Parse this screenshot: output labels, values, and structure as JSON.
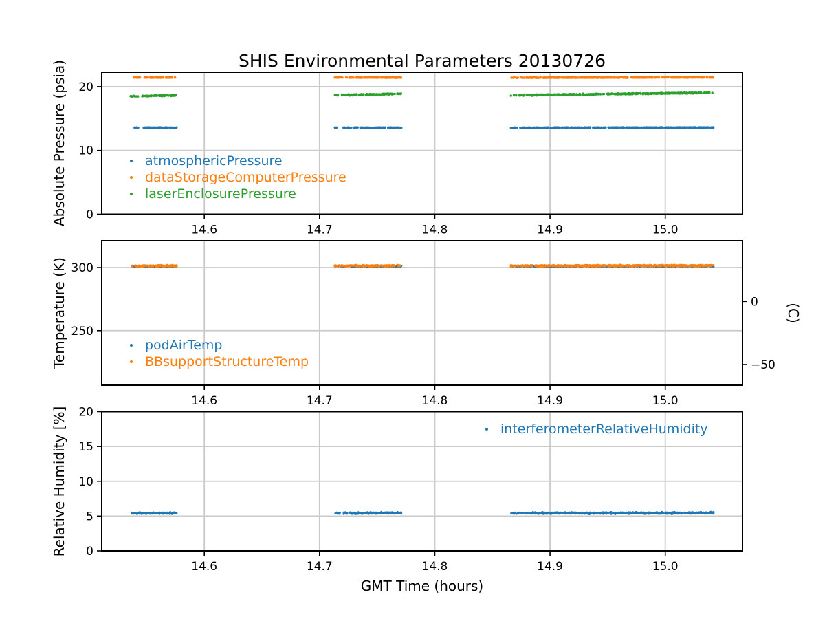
{
  "title": "SHIS Environmental Parameters 20130726",
  "xlabel": "GMT Time (hours)",
  "grid_color": "#cacaca",
  "frame_color": "#000000",
  "chart_data": [
    {
      "id": "pressure",
      "type": "scatter",
      "ylabel": "Absolute Pressure (psia)",
      "xlim": [
        14.511,
        15.067
      ],
      "ylim": [
        0,
        22.25
      ],
      "xticks": [
        14.6,
        14.7,
        14.8,
        14.9,
        15.0
      ],
      "xtick_labels": [
        "14.6",
        "14.7",
        "14.8",
        "14.9",
        "15.0"
      ],
      "yticks": [
        0,
        10,
        20
      ],
      "ytick_labels": [
        "0",
        "10",
        "20"
      ],
      "grid": true,
      "legend_position": "lower left",
      "series": [
        {
          "name": "atmosphericPressure",
          "color": "#1f77b4",
          "noise": 0.04,
          "density": 1.4,
          "r": 1.7,
          "segments": [
            {
              "x": [
                14.536,
                14.576
              ],
              "y": [
                13.58,
                13.58
              ]
            },
            {
              "x": [
                14.713,
                14.771
              ],
              "y": [
                13.58,
                13.58
              ]
            },
            {
              "x": [
                14.866,
                15.042
              ],
              "y": [
                13.57,
                13.6
              ]
            }
          ]
        },
        {
          "name": "dataStorageComputerPressure",
          "color": "#ff7f0e",
          "noise": 0.04,
          "density": 1.4,
          "r": 1.7,
          "segments": [
            {
              "x": [
                14.536,
                14.576
              ],
              "y": [
                21.42,
                21.42
              ]
            },
            {
              "x": [
                14.713,
                14.771
              ],
              "y": [
                21.42,
                21.42
              ]
            },
            {
              "x": [
                14.866,
                15.042
              ],
              "y": [
                21.4,
                21.45
              ]
            }
          ]
        },
        {
          "name": "laserEnclosurePressure",
          "color": "#2ca02c",
          "noise": 0.08,
          "density": 1.4,
          "r": 1.7,
          "segments": [
            {
              "x": [
                14.536,
                14.576
              ],
              "y": [
                18.47,
                18.64
              ]
            },
            {
              "x": [
                14.713,
                14.771
              ],
              "y": [
                18.66,
                18.88
              ]
            },
            {
              "x": [
                14.866,
                15.042
              ],
              "y": [
                18.64,
                19.05
              ]
            }
          ]
        }
      ]
    },
    {
      "id": "temperature",
      "type": "scatter",
      "ylabel": "Temperature (K)",
      "ylabel_right": "(C)",
      "xlim": [
        14.511,
        15.067
      ],
      "ylim": [
        206.8,
        321.3
      ],
      "xticks": [
        14.6,
        14.7,
        14.8,
        14.9,
        15.0
      ],
      "xtick_labels": [
        "14.6",
        "14.7",
        "14.8",
        "14.9",
        "15.0"
      ],
      "yticks": [
        250,
        300
      ],
      "ytick_labels": [
        "250",
        "300"
      ],
      "right_axis": {
        "offset_K": 273.15,
        "ticks": [
          0,
          -50
        ],
        "tick_labels": [
          "0",
          "−50"
        ]
      },
      "grid": true,
      "legend_position": "lower left",
      "series": [
        {
          "name": "podAirTemp",
          "color": "#1f77b4",
          "noise": 0.28,
          "density": 1.5,
          "r": 1.6,
          "segments": [
            {
              "x": [
                14.536,
                14.576
              ],
              "y": [
                300.9,
                301.0
              ]
            },
            {
              "x": [
                14.713,
                14.771
              ],
              "y": [
                300.95,
                301.05
              ]
            },
            {
              "x": [
                14.866,
                15.042
              ],
              "y": [
                300.95,
                301.15
              ]
            }
          ]
        },
        {
          "name": "BBsupportStructureTemp",
          "color": "#ff7f0e",
          "noise": 0.5,
          "density": 1.6,
          "r": 1.7,
          "segments": [
            {
              "x": [
                14.536,
                14.576
              ],
              "y": [
                301.3,
                301.45
              ]
            },
            {
              "x": [
                14.713,
                14.771
              ],
              "y": [
                301.35,
                301.5
              ]
            },
            {
              "x": [
                14.866,
                15.042
              ],
              "y": [
                301.4,
                301.6
              ]
            }
          ]
        }
      ]
    },
    {
      "id": "humidity",
      "type": "scatter",
      "ylabel": "Relative Humidity [%]",
      "xlim": [
        14.511,
        15.067
      ],
      "ylim": [
        0,
        20
      ],
      "xticks": [
        14.6,
        14.7,
        14.8,
        14.9,
        15.0
      ],
      "xtick_labels": [
        "14.6",
        "14.7",
        "14.8",
        "14.9",
        "15.0"
      ],
      "yticks": [
        0,
        5,
        10,
        15,
        20
      ],
      "ytick_labels": [
        "0",
        "5",
        "10",
        "15",
        "20"
      ],
      "grid": true,
      "legend_position": "upper right",
      "series": [
        {
          "name": "interferometerRelativeHumidity",
          "color": "#1f77b4",
          "noise": 0.12,
          "density": 2.0,
          "r": 1.5,
          "segments": [
            {
              "x": [
                14.536,
                14.576
              ],
              "y": [
                5.4,
                5.43
              ]
            },
            {
              "x": [
                14.713,
                14.771
              ],
              "y": [
                5.42,
                5.46
              ]
            },
            {
              "x": [
                14.866,
                15.042
              ],
              "y": [
                5.42,
                5.46
              ]
            }
          ]
        }
      ]
    }
  ]
}
